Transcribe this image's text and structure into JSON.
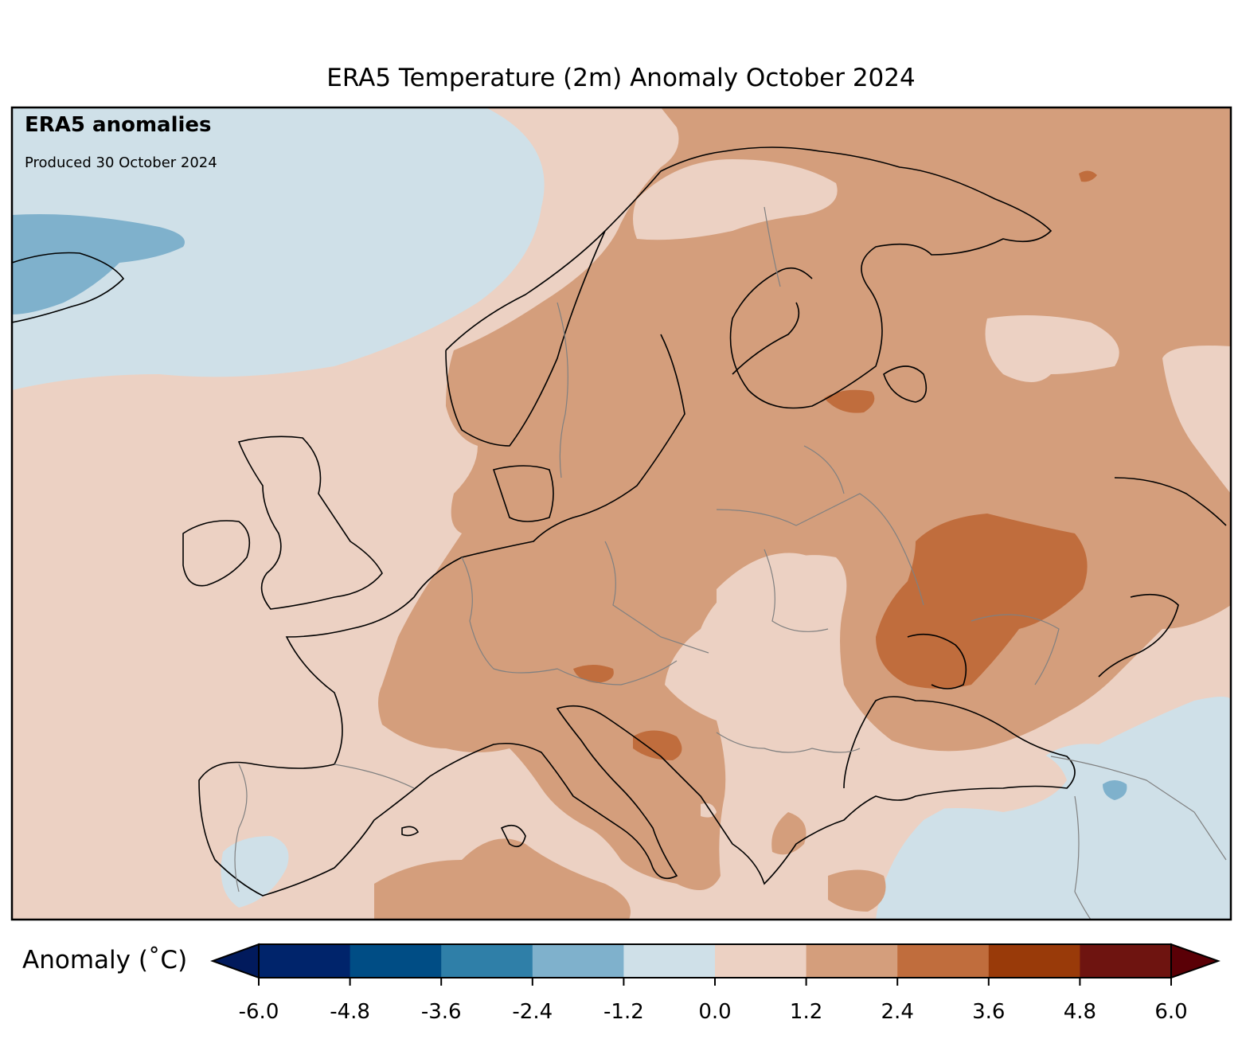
{
  "title": "ERA5 Temperature (2m) Anomaly October 2024",
  "brand_text": "ERA5 anomalies",
  "produced_text": "Produced 30 October 2024",
  "colorbar": {
    "label": "Anomaly (˚C)",
    "ticks": [
      "-6.0",
      "-4.8",
      "-3.6",
      "-2.4",
      "-1.2",
      "0.0",
      "1.2",
      "2.4",
      "3.6",
      "4.8",
      "6.0"
    ],
    "colors": [
      "#011a5c",
      "#00246b",
      "#004d85",
      "#2f7fa8",
      "#7fb1cc",
      "#cfe0e8",
      "#ecd1c3",
      "#d49e7c",
      "#c06d3d",
      "#993a09",
      "#6e1410",
      "#5a0006"
    ]
  },
  "palette": {
    "map_base": "#ecd1c3",
    "weak_cool": "#cfe0e8",
    "mod_cool": "#7fb1cc",
    "mod_warm": "#d49e7c",
    "strong_warm": "#c06d3d",
    "coast": "#000000",
    "border": "#808080"
  }
}
